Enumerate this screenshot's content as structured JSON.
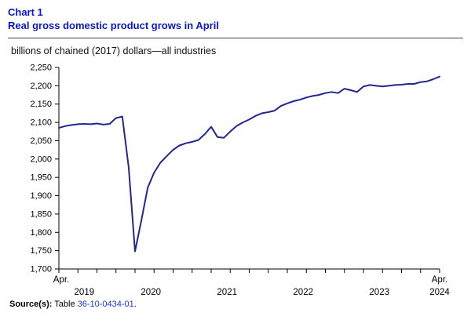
{
  "header": {
    "chart_label": "Chart 1",
    "title": "Real gross domestic product grows in April"
  },
  "subtitle": "billions of chained (2017) dollars—all industries",
  "source": {
    "label": "Source(s):",
    "table_word": "Table",
    "link": "36-10-0434-01",
    "period": "."
  },
  "colors": {
    "title_blue": "#0d17c9",
    "line_navy": "#23268f",
    "link_blue": "#1c35d8"
  },
  "chart_data": {
    "type": "line",
    "title": "Real gross domestic product grows in April",
    "subtitle": "billions of chained (2017) dollars—all industries",
    "xlabel": "",
    "ylabel": "billions of chained (2017) dollars",
    "ylim": [
      1700,
      2250
    ],
    "y_tick_step": 50,
    "y_tick_labels": [
      "1,700",
      "1,750",
      "1,800",
      "1,850",
      "1,900",
      "1,950",
      "2,000",
      "2,050",
      "2,100",
      "2,150",
      "2,200",
      "2,250"
    ],
    "grid": false,
    "legend": "none",
    "x_unit": "month",
    "x_range": [
      "April 2019",
      "April 2024"
    ],
    "x_end_labels": [
      "Apr.",
      "Apr."
    ],
    "x_year_labels": [
      "2019",
      "2020",
      "2021",
      "2022",
      "2023",
      "2024"
    ],
    "series": [
      {
        "name": "Real gross domestic product, all industries",
        "color": "#23268f",
        "values": [
          2085,
          2090,
          2093,
          2095,
          2096,
          2095,
          2097,
          2094,
          2096,
          2112,
          2116,
          1978,
          1748,
          1833,
          1922,
          1963,
          1990,
          2008,
          2025,
          2037,
          2043,
          2047,
          2052,
          2068,
          2088,
          2060,
          2058,
          2075,
          2090,
          2100,
          2108,
          2118,
          2125,
          2128,
          2132,
          2145,
          2152,
          2158,
          2162,
          2168,
          2172,
          2175,
          2180,
          2183,
          2180,
          2192,
          2188,
          2183,
          2198,
          2202,
          2200,
          2198,
          2200,
          2202,
          2203,
          2205,
          2205,
          2210,
          2212,
          2218,
          2225
        ]
      }
    ]
  }
}
